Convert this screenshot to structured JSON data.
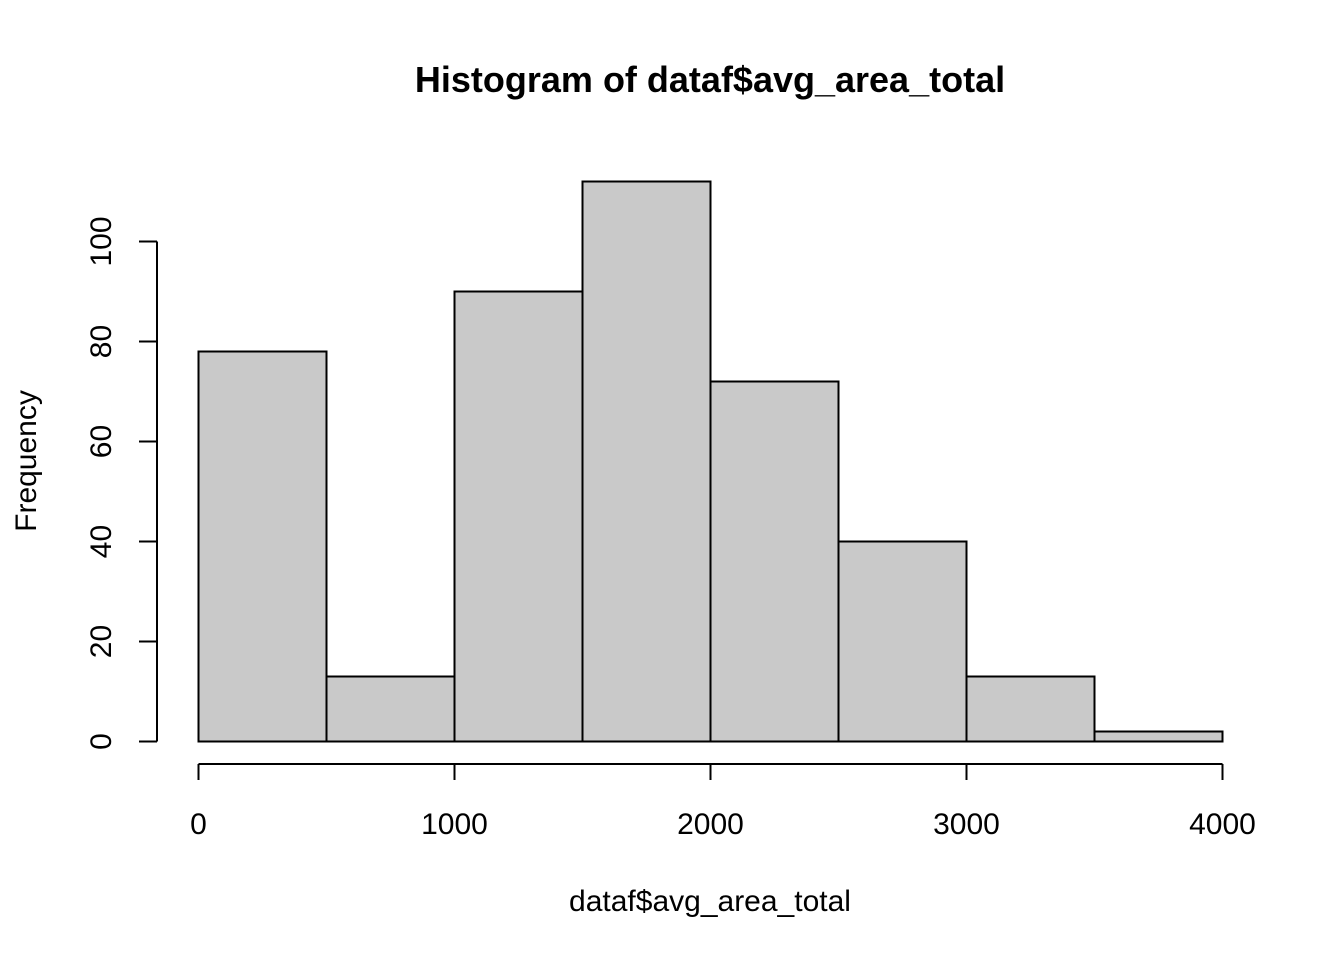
{
  "chart_data": {
    "type": "bar",
    "subtype": "histogram",
    "title": "Histogram of dataf$avg_area_total",
    "xlabel": "dataf$avg_area_total",
    "ylabel": "Frequency",
    "bins": [
      {
        "start": 0,
        "end": 500,
        "count": 78
      },
      {
        "start": 500,
        "end": 1000,
        "count": 13
      },
      {
        "start": 1000,
        "end": 1500,
        "count": 90
      },
      {
        "start": 1500,
        "end": 2000,
        "count": 112
      },
      {
        "start": 2000,
        "end": 2500,
        "count": 72
      },
      {
        "start": 2500,
        "end": 3000,
        "count": 40
      },
      {
        "start": 3000,
        "end": 3500,
        "count": 13
      },
      {
        "start": 3500,
        "end": 4000,
        "count": 2
      }
    ],
    "xlim": [
      0,
      4000
    ],
    "ylim": [
      0,
      112
    ],
    "xticks": [
      0,
      1000,
      2000,
      3000,
      4000
    ],
    "yticks": [
      0,
      20,
      40,
      60,
      80,
      100
    ],
    "bar_fill": "#c9c9c9",
    "bar_stroke": "#000000",
    "grid": false,
    "legend": "none"
  }
}
